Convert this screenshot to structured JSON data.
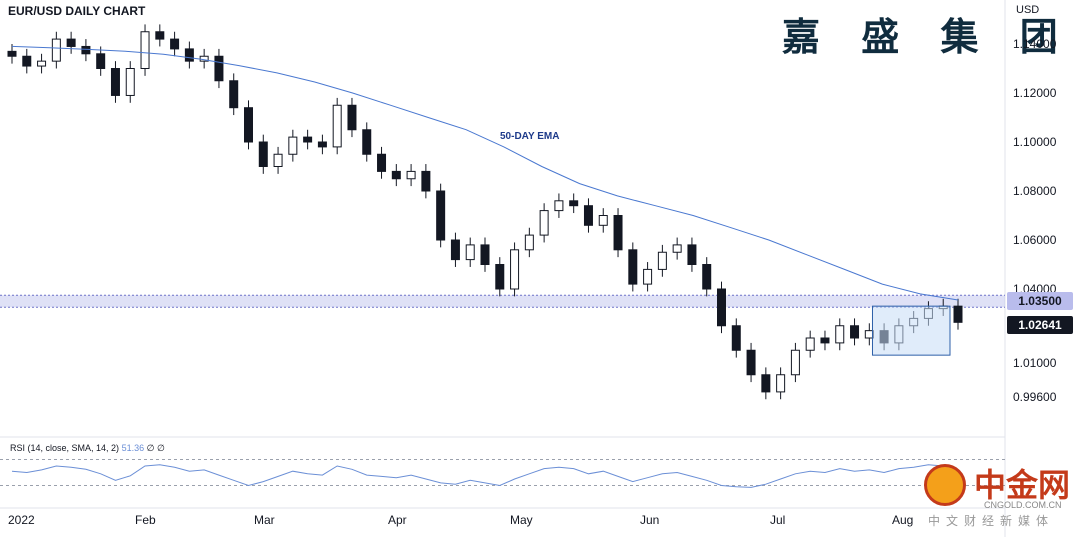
{
  "chart_data": {
    "type": "candlestick",
    "title": "EUR/USD DAILY CHART",
    "brand": "嘉 盛 集 团",
    "unit": "USD",
    "y_ticks": [
      "1.14000",
      "1.12000",
      "1.10000",
      "1.08000",
      "1.06000",
      "1.04000",
      "1.01000",
      "0.99600"
    ],
    "y_tick_values": [
      1.14,
      1.12,
      1.1,
      1.08,
      1.06,
      1.04,
      1.01,
      0.996
    ],
    "ylim": [
      0.99,
      1.15
    ],
    "x_ticks": [
      "2022",
      "Feb",
      "Mar",
      "Apr",
      "May",
      "Jun",
      "Jul",
      "Aug"
    ],
    "price_tags": [
      {
        "label": "1.03500",
        "value": 1.035,
        "bg": "#b9bcec",
        "fg": "#131722"
      },
      {
        "label": "1.02641",
        "value": 1.02641,
        "bg": "#131722",
        "fg": "#ffffff"
      }
    ],
    "support_level": 1.035,
    "ema_label": "50-DAY EMA",
    "ema": [
      1.139,
      1.1385,
      1.1378,
      1.137,
      1.1358,
      1.1338,
      1.1312,
      1.1282,
      1.1245,
      1.12,
      1.115,
      1.11,
      1.105,
      1.098,
      1.09,
      1.083,
      1.078,
      1.074,
      1.07,
      1.065,
      1.06,
      1.054,
      1.048,
      1.042,
      1.038,
      1.0355
    ],
    "consolidation_box": {
      "high": 1.033,
      "low": 1.013,
      "start_index": 22,
      "end_index": 25
    },
    "closes": [
      1.135,
      1.131,
      1.133,
      1.142,
      1.139,
      1.136,
      1.13,
      1.119,
      1.13,
      1.145,
      1.142,
      1.138,
      1.133,
      1.135,
      1.125,
      1.114,
      1.1,
      1.09,
      1.095,
      1.102,
      1.1,
      1.098,
      1.115,
      1.105,
      1.095,
      1.088,
      1.085,
      1.088,
      1.08,
      1.06,
      1.052,
      1.058,
      1.05,
      1.04,
      1.056,
      1.062,
      1.072,
      1.076,
      1.074,
      1.066,
      1.07,
      1.056,
      1.042,
      1.048,
      1.055,
      1.058,
      1.05,
      1.04,
      1.025,
      1.015,
      1.005,
      0.998,
      1.005,
      1.015,
      1.02,
      1.018,
      1.025,
      1.02,
      1.023,
      1.018,
      1.025,
      1.028,
      1.032,
      1.033,
      1.0264
    ],
    "rsi": {
      "label_prefix": "RSI (14, close, SMA, 14, 2)",
      "value": "51.36",
      "suffix": "∅ ∅",
      "upper": 70,
      "lower": 30,
      "values": [
        52,
        50,
        54,
        60,
        58,
        55,
        48,
        38,
        45,
        60,
        62,
        58,
        52,
        54,
        46,
        38,
        30,
        36,
        44,
        52,
        48,
        46,
        60,
        55,
        46,
        44,
        42,
        46,
        40,
        34,
        32,
        38,
        34,
        30,
        40,
        48,
        56,
        58,
        56,
        48,
        52,
        44,
        36,
        42,
        48,
        50,
        44,
        38,
        30,
        28,
        27,
        32,
        40,
        48,
        52,
        50,
        56,
        52,
        54,
        50,
        56,
        58,
        62,
        60,
        51
      ]
    }
  },
  "watermark": {
    "text": "中金网",
    "url": "CNGOLD.COM.CN",
    "sub": "中文财经新媒体"
  }
}
